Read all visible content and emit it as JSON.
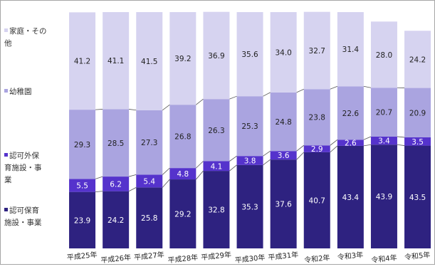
{
  "chart_data": {
    "type": "bar",
    "stacked": true,
    "percent": true,
    "categories": [
      "平成25年",
      "平成26年",
      "平成27年",
      "平成28年",
      "平成29年",
      "平成30年",
      "平成31年",
      "令和2年",
      "令和3年",
      "令和4年",
      "令和5年"
    ],
    "series": [
      {
        "name": "認可保育\n施設・事業",
        "color": "#2e2280",
        "label_color": "#ffffff",
        "values": [
          23.9,
          24.2,
          25.8,
          29.2,
          32.8,
          35.3,
          37.6,
          40.7,
          43.4,
          43.9,
          43.5
        ]
      },
      {
        "name": "認可外保\n育施設・事\n業",
        "color": "#5533cc",
        "label_color": "#ffffff",
        "values": [
          5.5,
          6.2,
          5.4,
          4.8,
          4.1,
          3.8,
          3.6,
          2.9,
          2.6,
          3.4,
          3.5
        ]
      },
      {
        "name": "幼稚園",
        "color": "#aaa4e0",
        "label_color": "#222222",
        "values": [
          29.3,
          28.5,
          27.3,
          26.8,
          26.3,
          25.3,
          24.8,
          23.8,
          22.6,
          20.7,
          20.9
        ]
      },
      {
        "name": "家庭・その\n他",
        "color": "#d6d3f0",
        "label_color": "#222222",
        "values": [
          41.2,
          41.1,
          41.5,
          39.2,
          36.9,
          35.6,
          34.0,
          32.7,
          31.4,
          28.0,
          24.2
        ]
      }
    ],
    "ylim": [
      0,
      100
    ],
    "grid": false,
    "legend_position": "left",
    "connector_lines": true
  }
}
